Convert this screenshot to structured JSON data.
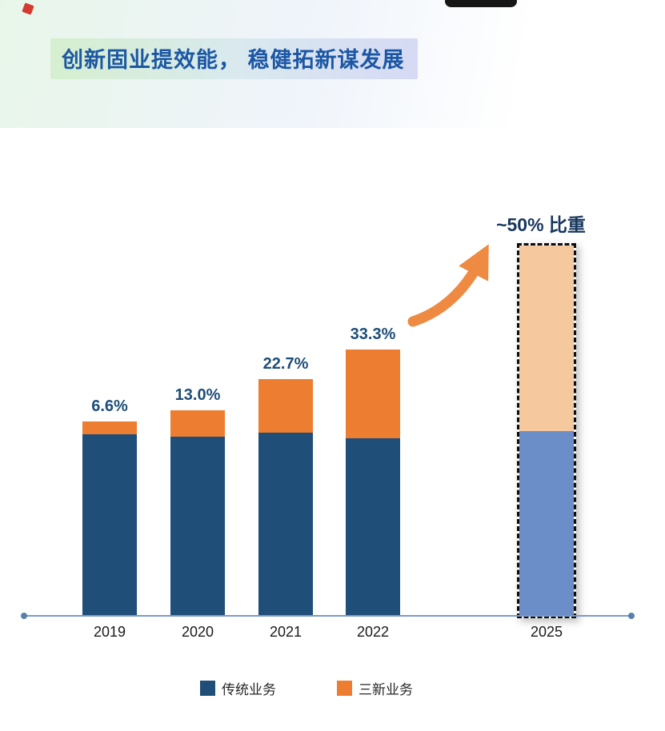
{
  "header": {
    "title": "创新固业提效能， 稳健拓新谋发展"
  },
  "chart_data": {
    "type": "bar",
    "stacked": true,
    "title": "创新固业提效能， 稳健拓新谋发展",
    "categories": [
      "2019",
      "2020",
      "2021",
      "2022",
      "2025"
    ],
    "series_names": [
      "传统业务",
      "三新业务"
    ],
    "series": [
      {
        "name": "传统业务",
        "values_rel": [
          227,
          224,
          229,
          222,
          232
        ]
      },
      {
        "name": "三新业务",
        "values_rel": [
          16,
          33,
          67,
          111,
          231
        ]
      }
    ],
    "new_business_share_pct": [
      6.6,
      13.0,
      22.7,
      33.3,
      50
    ],
    "bar_total_rel_height": [
      243,
      257,
      296,
      333,
      463
    ],
    "bar_labels": [
      "6.6%",
      "13.0%",
      "22.7%",
      "33.3%",
      ""
    ],
    "annotation_2025": "~50% 比重",
    "highlight_index": 4,
    "legend_position": "bottom",
    "axis": "x-only",
    "grid": "off",
    "colors": {
      "traditional": "#1F4E79",
      "new": "#ED7D31",
      "traditional_2025": "#6B8EC9",
      "new_2025": "#F6C89E",
      "label_text": "#1F4E79",
      "annotation_text": "#17365D",
      "axis": "#7C99C4",
      "arrow": "#EE8A41",
      "title_text": "#1C57A5"
    }
  },
  "legend": {
    "items": [
      {
        "label": "传统业务",
        "color": "#1F4E79"
      },
      {
        "label": "三新业务",
        "color": "#ED7D31"
      }
    ]
  }
}
